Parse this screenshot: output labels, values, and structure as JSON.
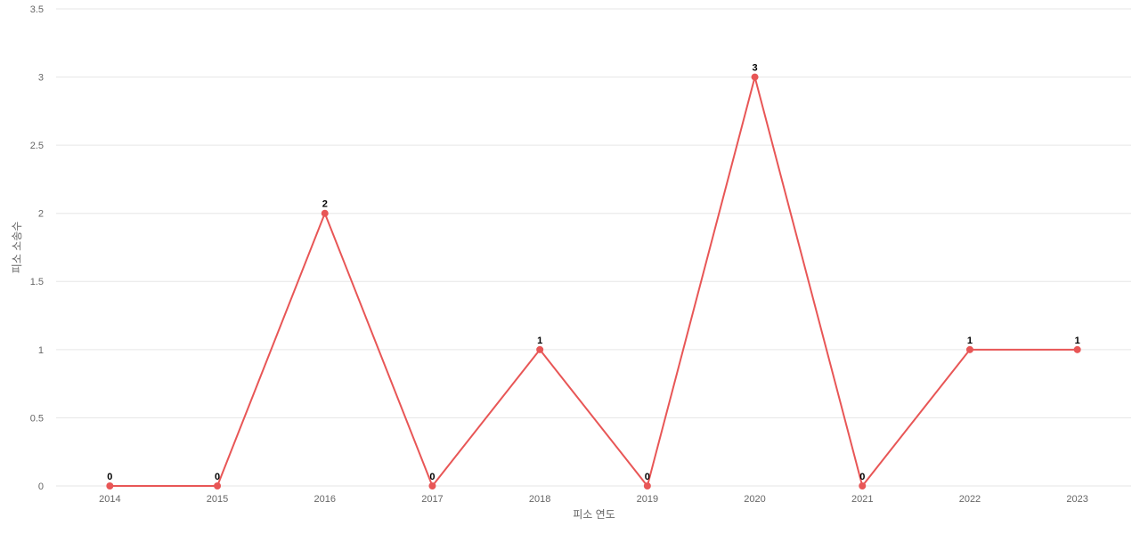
{
  "chart_data": {
    "type": "line",
    "x_label": "피소 연도",
    "y_label": "피소 소송수",
    "categories": [
      "2014",
      "2015",
      "2016",
      "2017",
      "2018",
      "2019",
      "2020",
      "2021",
      "2022",
      "2023"
    ],
    "values": [
      0,
      0,
      2,
      0,
      1,
      0,
      3,
      0,
      1,
      1
    ],
    "color": "#e85656",
    "ylim": [
      0,
      3.5
    ],
    "yticks": [
      0,
      0.5,
      1,
      1.5,
      2,
      2.5,
      3,
      3.5
    ],
    "grid": true
  }
}
